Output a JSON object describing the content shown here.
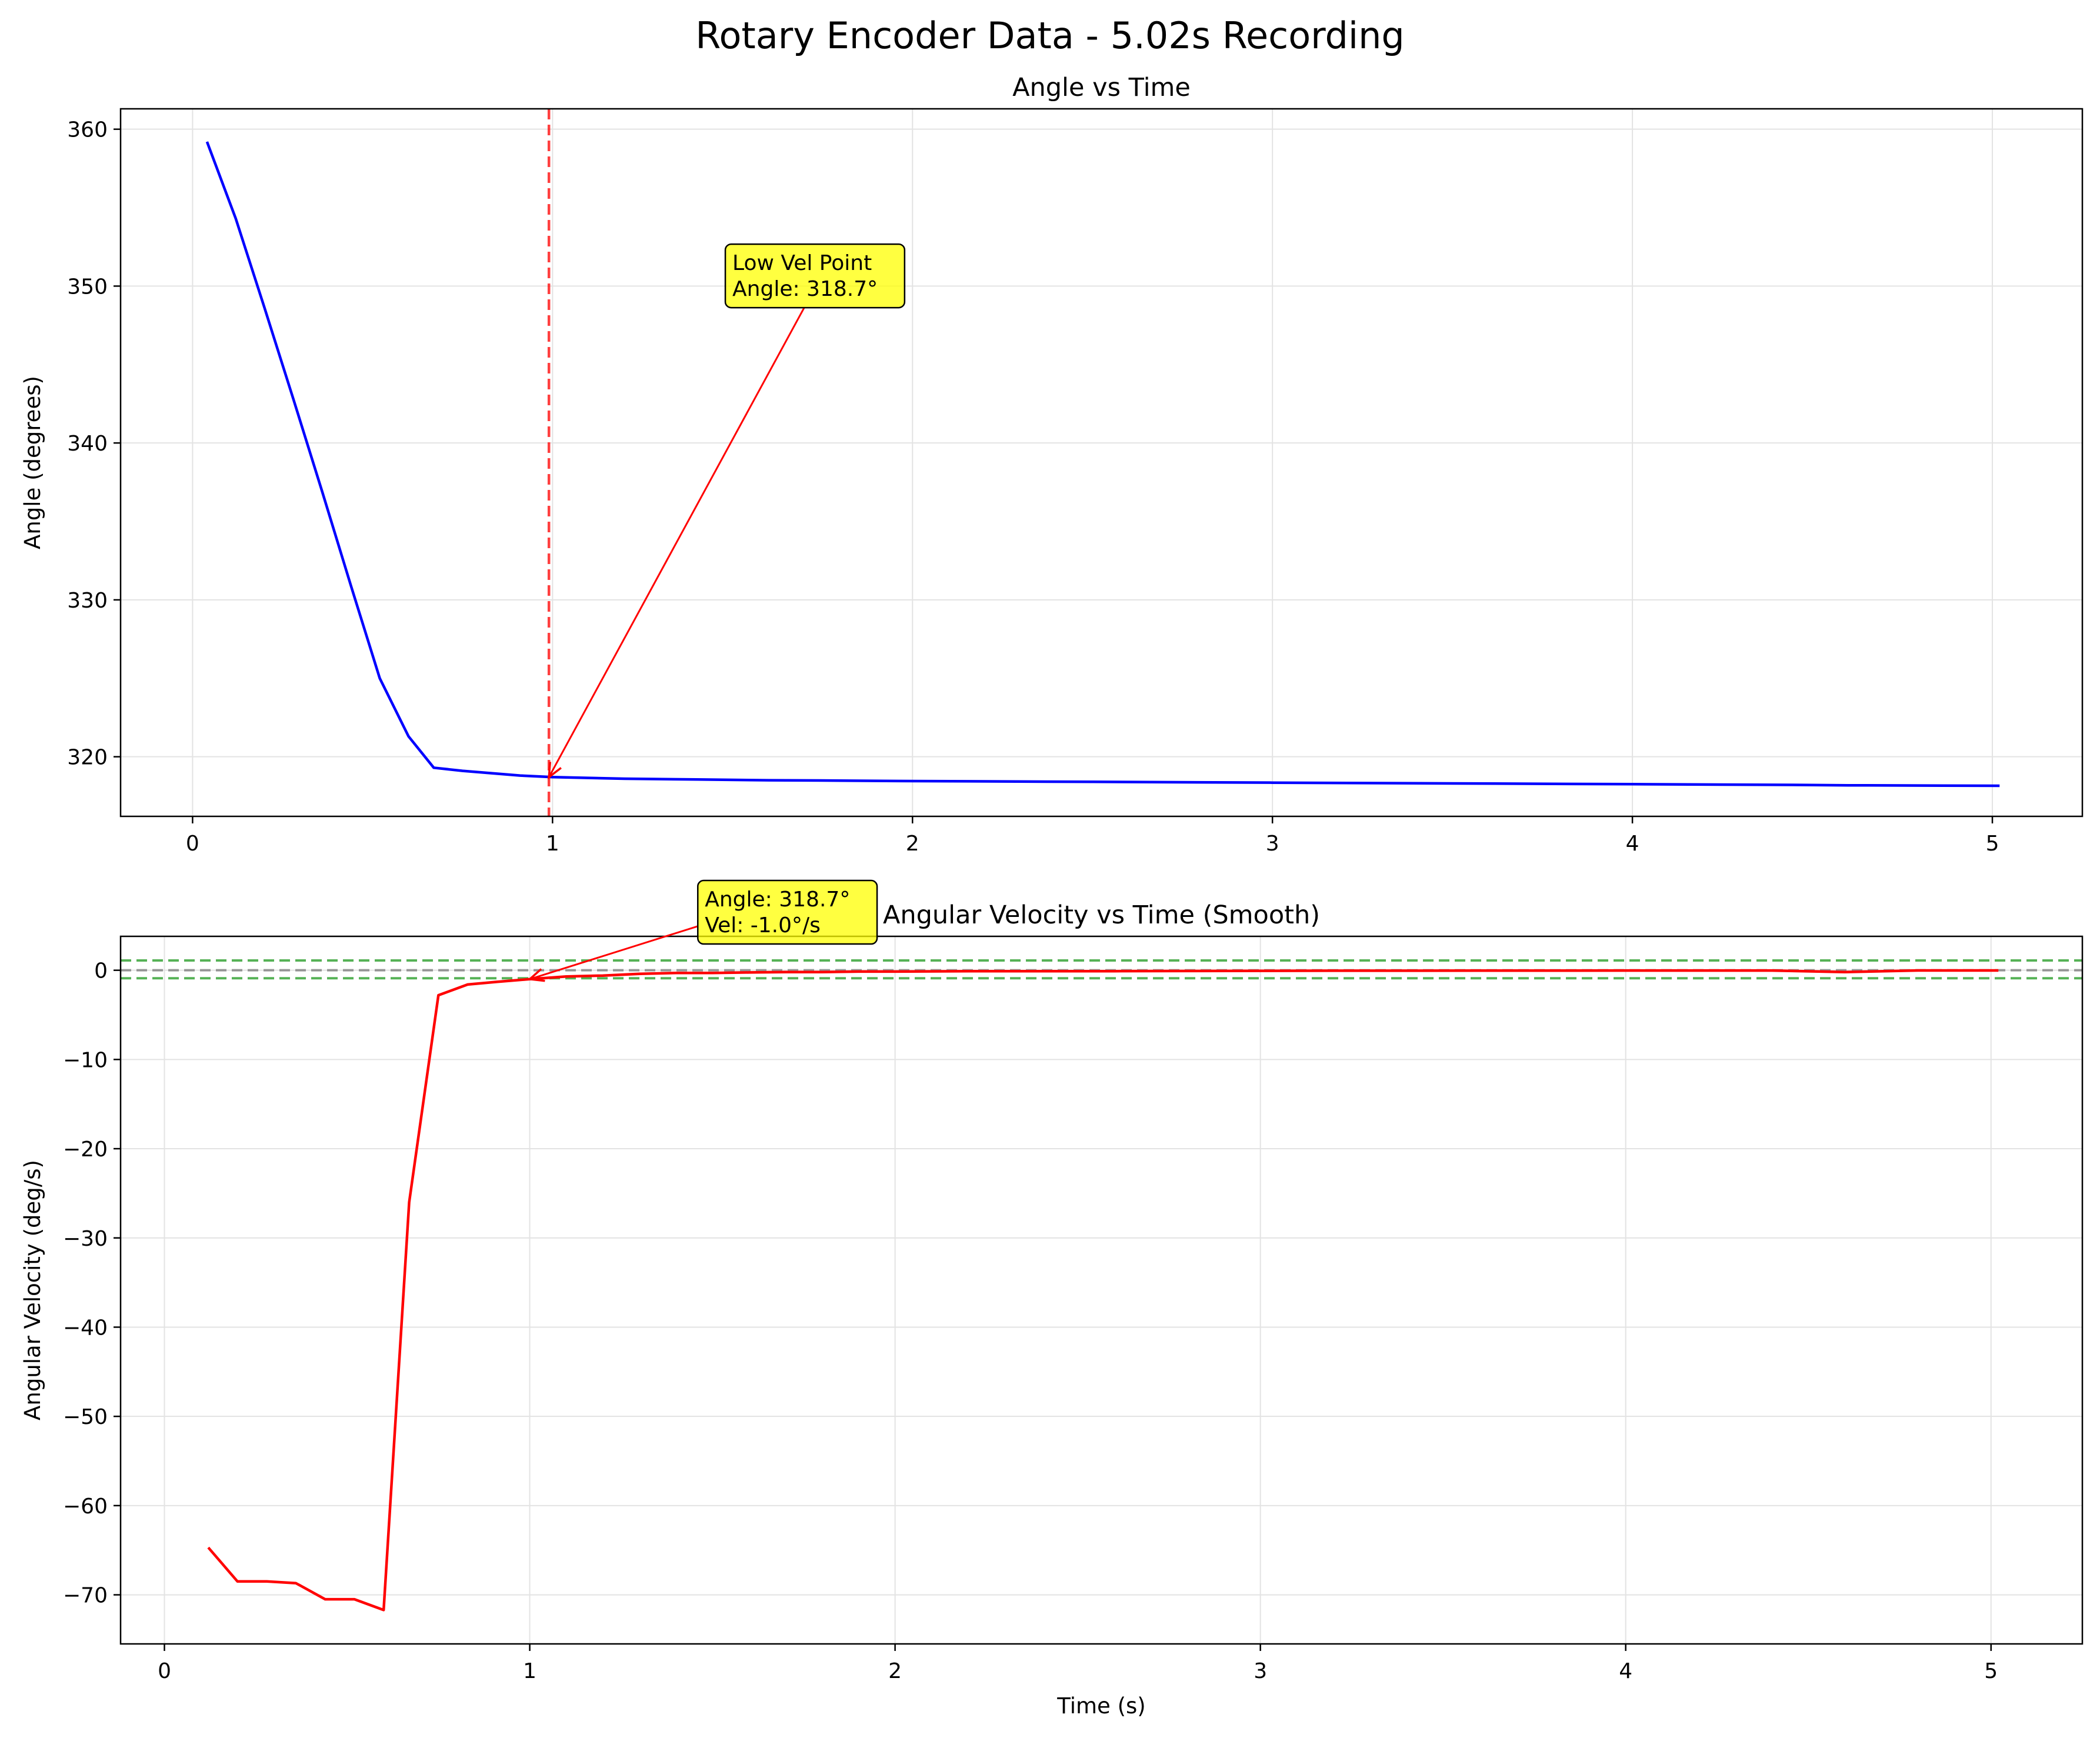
{
  "figure": {
    "suptitle": "Rotary Encoder Data - 5.02s Recording"
  },
  "chart_data": [
    {
      "type": "line",
      "title": "Angle vs Time",
      "xlabel": "",
      "ylabel": "Angle (degrees)",
      "xlim": [
        -0.2,
        5.25
      ],
      "ylim": [
        316.2,
        361.3
      ],
      "xticks": [
        0,
        1,
        2,
        3,
        4,
        5
      ],
      "yticks": [
        320,
        330,
        340,
        350,
        360
      ],
      "grid": true,
      "series": [
        {
          "color": "#0000ff",
          "x": [
            0.04,
            0.12,
            0.2,
            0.28,
            0.36,
            0.44,
            0.52,
            0.6,
            0.67,
            0.75,
            0.83,
            0.91,
            1.0,
            1.2,
            1.4,
            1.6,
            1.8,
            2.0,
            2.5,
            3.0,
            3.5,
            4.0,
            4.5,
            4.6,
            5.02
          ],
          "y": [
            359.2,
            354.3,
            348.6,
            342.8,
            336.9,
            330.9,
            325.0,
            321.3,
            319.3,
            319.1,
            318.95,
            318.8,
            318.7,
            318.6,
            318.55,
            318.5,
            318.48,
            318.45,
            318.4,
            318.35,
            318.3,
            318.25,
            318.2,
            318.18,
            318.15
          ]
        }
      ],
      "vline": {
        "x": 0.99,
        "color": "#ff0000"
      },
      "annotation": {
        "lines": [
          "Low Vel Point",
          "Angle: 318.7°"
        ],
        "point": [
          0.99,
          318.7
        ],
        "text_pos": [
          1.48,
          349.0
        ]
      }
    },
    {
      "type": "line",
      "title": "Angular Velocity vs Time (Smooth)",
      "xlabel": "Time (s)",
      "ylabel": "Angular Velocity (deg/s)",
      "xlim": [
        -0.12,
        5.25
      ],
      "ylim": [
        -75.5,
        3.8
      ],
      "xticks": [
        0,
        1,
        2,
        3,
        4,
        5
      ],
      "yticks": [
        0,
        -10,
        -20,
        -30,
        -40,
        -50,
        -60,
        -70
      ],
      "grid": true,
      "series": [
        {
          "color": "#ff0000",
          "x": [
            0.12,
            0.2,
            0.28,
            0.36,
            0.44,
            0.52,
            0.6,
            0.67,
            0.75,
            0.83,
            0.91,
            1.0,
            1.1,
            1.2,
            1.3,
            1.4,
            1.5,
            1.6,
            1.7,
            1.8,
            1.9,
            2.0,
            2.2,
            2.4,
            2.6,
            2.8,
            3.0,
            3.2,
            3.4,
            3.6,
            3.8,
            4.0,
            4.2,
            4.4,
            4.6,
            4.8,
            5.02
          ],
          "y": [
            -64.7,
            -68.5,
            -68.5,
            -68.7,
            -70.5,
            -70.5,
            -71.7,
            -26.0,
            -2.8,
            -1.6,
            -1.3,
            -1.0,
            -0.7,
            -0.6,
            -0.4,
            -0.3,
            -0.3,
            -0.25,
            -0.2,
            -0.2,
            -0.15,
            -0.15,
            -0.1,
            -0.1,
            -0.1,
            -0.08,
            -0.06,
            -0.05,
            -0.05,
            -0.04,
            -0.04,
            -0.03,
            -0.03,
            -0.03,
            -0.2,
            -0.02,
            -0.02
          ]
        }
      ],
      "hlines": [
        {
          "y": 1.1,
          "color": "#2ca02c"
        },
        {
          "y": 0.0,
          "color": "#808080"
        },
        {
          "y": -0.9,
          "color": "#2ca02c"
        }
      ],
      "annotation": {
        "lines": [
          "Angle: 318.7°",
          "Vel: -1.0°/s"
        ],
        "point": [
          1.0,
          -1.0
        ],
        "text_pos": [
          1.46,
          3.6
        ]
      }
    }
  ]
}
